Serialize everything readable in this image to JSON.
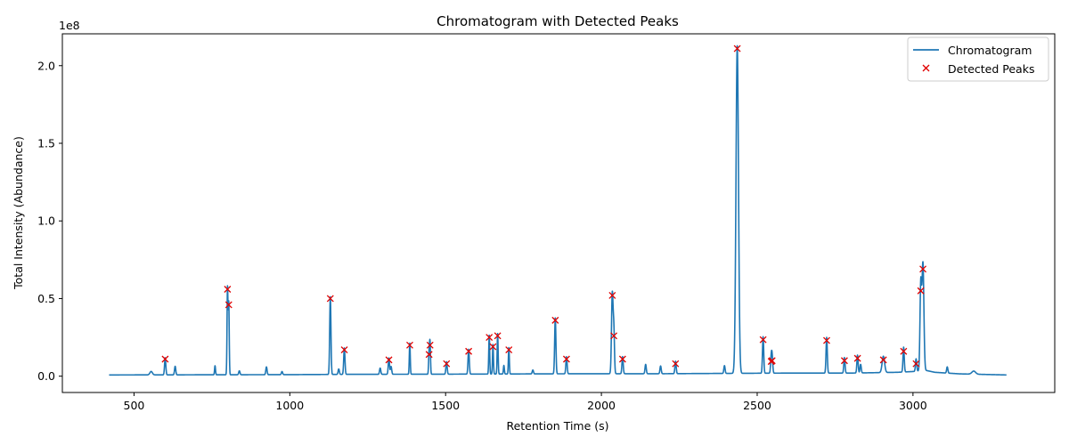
{
  "chart_data": {
    "type": "line",
    "title": "Chromatogram with Detected Peaks",
    "xlabel": "Retention Time (s)",
    "ylabel": "Total Intensity (Abundance)",
    "y_scale_label": "1e8",
    "xlim": [
      270,
      3455
    ],
    "ylim": [
      -10500000.0,
      220500000.0
    ],
    "x_ticks": [
      500,
      1000,
      1500,
      2000,
      2500,
      3000
    ],
    "x_tick_labels": [
      "500",
      "1000",
      "1500",
      "2000",
      "2500",
      "3000"
    ],
    "y_ticks": [
      0,
      50000000.0,
      100000000.0,
      150000000.0,
      200000000.0
    ],
    "y_tick_labels": [
      "0.0",
      "0.5",
      "1.0",
      "1.5",
      "2.0"
    ],
    "grid": false,
    "legend_position": "top-right",
    "colors": {
      "line": "#1f77b4",
      "peaks": "#e00000"
    },
    "series": [
      {
        "name": "Chromatogram",
        "kind": "line",
        "baseline": [
          [
            420,
            800000
          ],
          [
            700,
            900000
          ],
          [
            1000,
            1000000
          ],
          [
            1200,
            1200000
          ],
          [
            1500,
            1300000
          ],
          [
            1800,
            1500000
          ],
          [
            2000,
            1600000
          ],
          [
            2200,
            1600000
          ],
          [
            2400,
            1800000
          ],
          [
            2600,
            2000000
          ],
          [
            2800,
            2000000
          ],
          [
            2950,
            2500000
          ],
          [
            3000,
            3000000
          ],
          [
            3040,
            3800000
          ],
          [
            3070,
            2500000
          ],
          [
            3150,
            1500000
          ],
          [
            3300,
            800000
          ]
        ],
        "peaks": [
          [
            555,
            2200000,
            4
          ],
          [
            600,
            11000000,
            2
          ],
          [
            632,
            5500000,
            2
          ],
          [
            760,
            5800000,
            1.5
          ],
          [
            800,
            56000000,
            1.5
          ],
          [
            804,
            46000000,
            1.5
          ],
          [
            838,
            2500000,
            2
          ],
          [
            925,
            5000000,
            2
          ],
          [
            975,
            2000000,
            2
          ],
          [
            1130,
            50000000,
            2
          ],
          [
            1157,
            3500000,
            2
          ],
          [
            1175,
            17000000,
            2
          ],
          [
            1290,
            4000000,
            2
          ],
          [
            1318,
            10500000,
            2
          ],
          [
            1325,
            5000000,
            2
          ],
          [
            1385,
            20000000,
            1.5
          ],
          [
            1447,
            14000000,
            1.5
          ],
          [
            1450,
            20000000,
            1.5
          ],
          [
            1503,
            8000000,
            2
          ],
          [
            1574,
            16000000,
            2
          ],
          [
            1640,
            25000000,
            1.5
          ],
          [
            1652,
            19000000,
            1.5
          ],
          [
            1667,
            26000000,
            1.5
          ],
          [
            1687,
            5500000,
            1.5
          ],
          [
            1703,
            17000000,
            1.5
          ],
          [
            1780,
            2500000,
            2
          ],
          [
            1852,
            36000000,
            2
          ],
          [
            1888,
            11000000,
            2
          ],
          [
            2035,
            52000000,
            2.5
          ],
          [
            2040,
            26000000,
            2
          ],
          [
            2068,
            11000000,
            2
          ],
          [
            2142,
            6000000,
            2
          ],
          [
            2190,
            5000000,
            2
          ],
          [
            2238,
            8000000,
            2
          ],
          [
            2395,
            5000000,
            2
          ],
          [
            2436,
            211000000,
            4
          ],
          [
            2519,
            23500000,
            2
          ],
          [
            2545,
            9500000,
            2
          ],
          [
            2548,
            10000000,
            2
          ],
          [
            2723,
            23000000,
            2
          ],
          [
            2780,
            10000000,
            2
          ],
          [
            2822,
            11500000,
            2
          ],
          [
            2832,
            5500000,
            2
          ],
          [
            2905,
            10500000,
            4
          ],
          [
            2970,
            16000000,
            2
          ],
          [
            3010,
            8000000,
            2
          ],
          [
            3025,
            55000000,
            2.5
          ],
          [
            3032,
            69000000,
            3
          ],
          [
            3110,
            4000000,
            2
          ],
          [
            3195,
            2000000,
            6
          ]
        ]
      },
      {
        "name": "Detected Peaks",
        "kind": "scatter",
        "marker": "x",
        "x": [
          600,
          800,
          804,
          1130,
          1175,
          1318,
          1385,
          1447,
          1450,
          1503,
          1574,
          1640,
          1652,
          1667,
          1703,
          1852,
          1888,
          2035,
          2040,
          2068,
          2238,
          2436,
          2519,
          2545,
          2548,
          2723,
          2780,
          2822,
          2905,
          2970,
          3010,
          3025,
          3032
        ],
        "y": [
          11000000,
          56000000,
          46000000,
          50000000,
          17000000,
          10500000,
          20000000,
          14000000,
          20000000,
          8000000,
          16000000,
          25000000,
          19000000,
          26000000,
          17000000,
          36000000,
          11000000,
          52000000,
          26000000,
          11000000,
          8000000,
          211000000,
          23500000,
          9500000,
          10000000,
          23000000,
          10000000,
          11500000,
          10500000,
          16000000,
          8000000,
          55000000,
          69000000
        ]
      }
    ]
  }
}
